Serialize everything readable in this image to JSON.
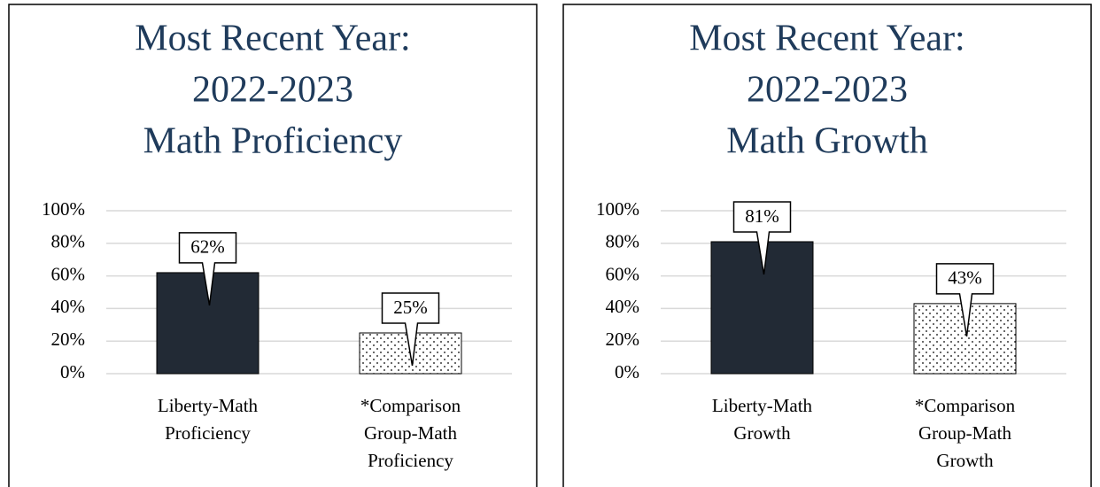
{
  "chart_data": [
    {
      "type": "bar",
      "title": [
        "Most Recent Year:",
        "2022-2023",
        "Math Proficiency"
      ],
      "categories": [
        [
          "Liberty-Math",
          "Proficiency"
        ],
        [
          "*Comparison",
          "Group-Math",
          "Proficiency"
        ]
      ],
      "values": [
        62,
        25
      ],
      "value_labels": [
        "62%",
        "25%"
      ],
      "colors": [
        "#222a35",
        "dotted"
      ],
      "ylim": [
        0,
        100
      ],
      "yticks": [
        {
          "value": 0,
          "label": "0%"
        },
        {
          "value": 20,
          "label": "20%"
        },
        {
          "value": 40,
          "label": "40%"
        },
        {
          "value": 60,
          "label": "60%"
        },
        {
          "value": 80,
          "label": "80%"
        },
        {
          "value": 100,
          "label": "100%"
        }
      ],
      "grid": true
    },
    {
      "type": "bar",
      "title": [
        "Most Recent Year:",
        "2022-2023",
        "Math Growth"
      ],
      "categories": [
        [
          "Liberty-Math",
          "Growth"
        ],
        [
          "*Comparison",
          "Group-Math",
          "Growth"
        ]
      ],
      "values": [
        81,
        43
      ],
      "value_labels": [
        "81%",
        "43%"
      ],
      "colors": [
        "#222a35",
        "dotted"
      ],
      "ylim": [
        0,
        100
      ],
      "yticks": [
        {
          "value": 0,
          "label": "0%"
        },
        {
          "value": 20,
          "label": "20%"
        },
        {
          "value": 40,
          "label": "40%"
        },
        {
          "value": 60,
          "label": "60%"
        },
        {
          "value": 80,
          "label": "80%"
        },
        {
          "value": 100,
          "label": "100%"
        }
      ],
      "grid": true
    }
  ]
}
